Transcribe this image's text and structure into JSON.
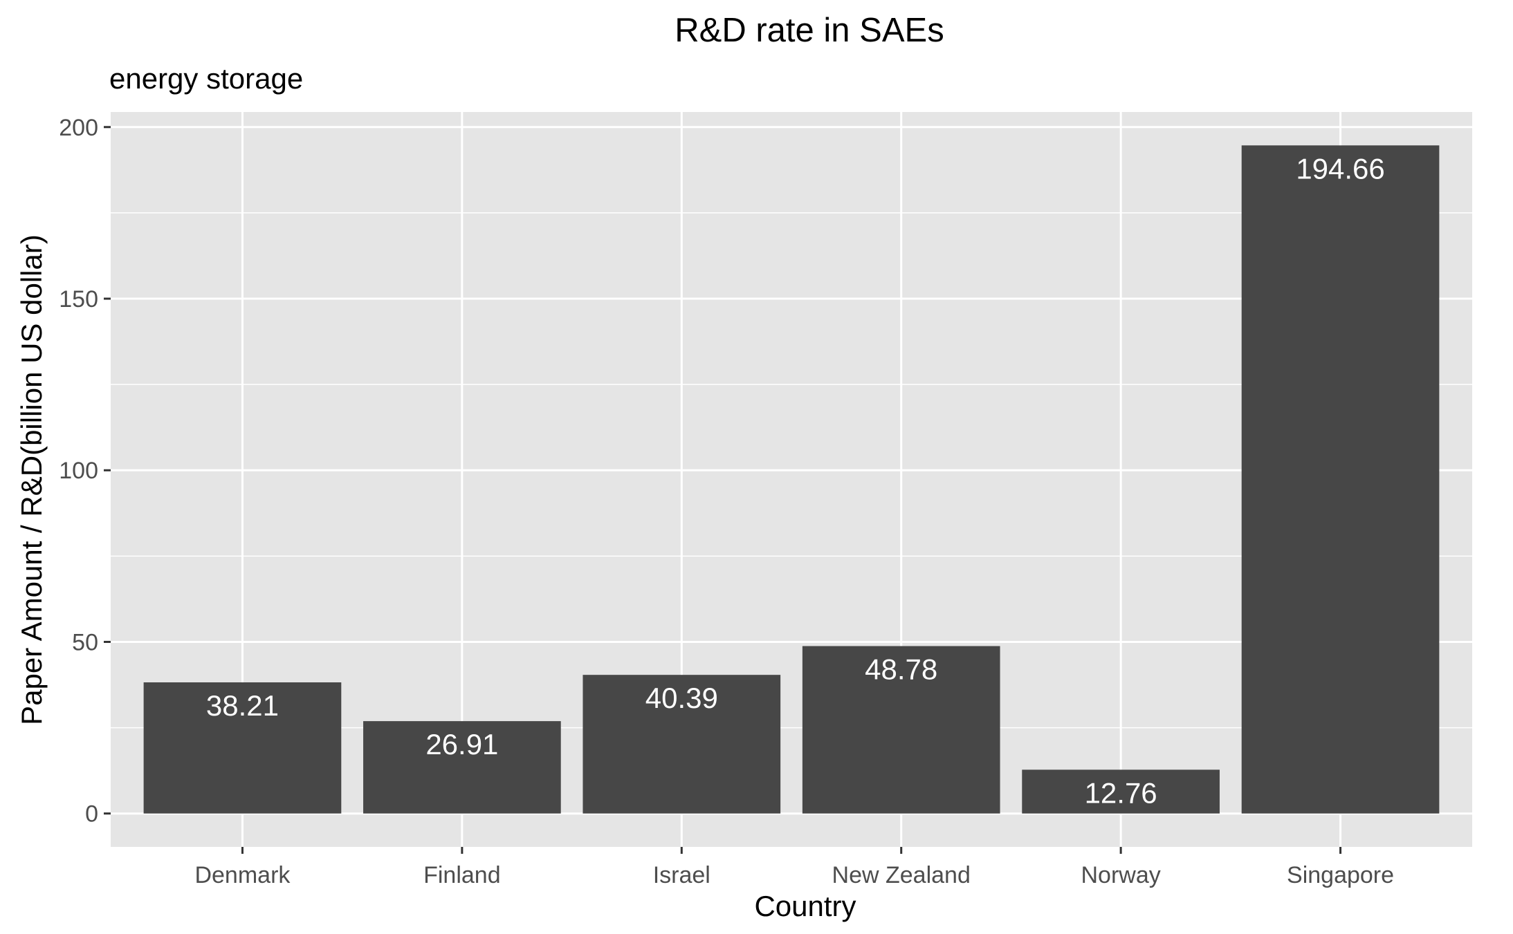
{
  "chart_data": {
    "type": "bar",
    "title": "R&D rate in SAEs",
    "subtitle": "energy storage",
    "xlabel": "Country",
    "ylabel": "Paper Amount / R&D(billion US dollar)",
    "categories": [
      "Denmark",
      "Finland",
      "Israel",
      "New Zealand",
      "Norway",
      "Singapore"
    ],
    "values": [
      38.21,
      26.91,
      40.39,
      48.78,
      12.76,
      194.66
    ],
    "data_labels": [
      "38.21",
      "26.91",
      "40.39",
      "48.78",
      "12.76",
      "194.66"
    ],
    "yticks": [
      0,
      50,
      100,
      150,
      200
    ],
    "ylim": [
      -9.73,
      204.39
    ],
    "grid": true,
    "legend": "none",
    "colors": {
      "bar": "#474747",
      "panel": "#e5e5e5",
      "grid": "#ffffff",
      "label": "#ffffff"
    }
  }
}
